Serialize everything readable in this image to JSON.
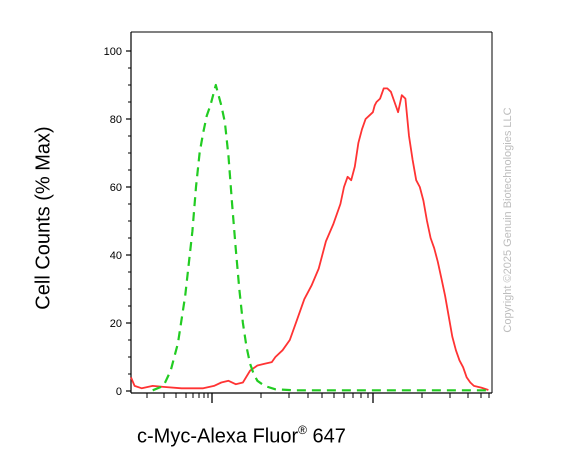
{
  "chart_data": {
    "type": "line",
    "xlabel_parts": {
      "main": "c-Myc-Alexa Fluor",
      "sup": "®",
      "rest": " 647"
    },
    "ylabel": "Cell Counts (% Max)",
    "ylim": [
      0,
      100
    ],
    "y_ticks": [
      "0",
      "20",
      "40",
      "60",
      "80",
      "100"
    ],
    "x_scale": "log",
    "x_ticks_labels": "none",
    "grid": false,
    "legend": "none",
    "series": [
      {
        "color": "#ff3333",
        "style": "solid",
        "points": [
          [
            0.0,
            4
          ],
          [
            0.01,
            1.5
          ],
          [
            0.03,
            0.8
          ],
          [
            0.06,
            1.5
          ],
          [
            0.09,
            1.2
          ],
          [
            0.14,
            0.8
          ],
          [
            0.2,
            0.8
          ],
          [
            0.23,
            1.5
          ],
          [
            0.25,
            2.5
          ],
          [
            0.27,
            3
          ],
          [
            0.29,
            2
          ],
          [
            0.31,
            2.5
          ],
          [
            0.33,
            6
          ],
          [
            0.35,
            7.5
          ],
          [
            0.37,
            8
          ],
          [
            0.39,
            8.5
          ],
          [
            0.4,
            10
          ],
          [
            0.42,
            12
          ],
          [
            0.44,
            15
          ],
          [
            0.46,
            21
          ],
          [
            0.48,
            27
          ],
          [
            0.5,
            31
          ],
          [
            0.52,
            36
          ],
          [
            0.54,
            44
          ],
          [
            0.56,
            49
          ],
          [
            0.58,
            55
          ],
          [
            0.59,
            60
          ],
          [
            0.6,
            63
          ],
          [
            0.61,
            62
          ],
          [
            0.62,
            66
          ],
          [
            0.63,
            73
          ],
          [
            0.64,
            77
          ],
          [
            0.65,
            80
          ],
          [
            0.66,
            81
          ],
          [
            0.67,
            82
          ],
          [
            0.675,
            84
          ],
          [
            0.68,
            85
          ],
          [
            0.69,
            86
          ],
          [
            0.7,
            89
          ],
          [
            0.71,
            89
          ],
          [
            0.72,
            88
          ],
          [
            0.73,
            85
          ],
          [
            0.74,
            82
          ],
          [
            0.75,
            87
          ],
          [
            0.76,
            86
          ],
          [
            0.77,
            75
          ],
          [
            0.78,
            68
          ],
          [
            0.79,
            62
          ],
          [
            0.8,
            60
          ],
          [
            0.81,
            56
          ],
          [
            0.82,
            50
          ],
          [
            0.83,
            45
          ],
          [
            0.84,
            42
          ],
          [
            0.85,
            38
          ],
          [
            0.86,
            33
          ],
          [
            0.87,
            28
          ],
          [
            0.88,
            22
          ],
          [
            0.89,
            16
          ],
          [
            0.9,
            12
          ],
          [
            0.91,
            9
          ],
          [
            0.92,
            7
          ],
          [
            0.93,
            4
          ],
          [
            0.94,
            2.5
          ],
          [
            0.95,
            1.5
          ],
          [
            0.97,
            1
          ],
          [
            0.99,
            0.3
          ]
        ]
      },
      {
        "color": "#22cc22",
        "style": "dashed",
        "points": [
          [
            0.06,
            0.2
          ],
          [
            0.09,
            1.5
          ],
          [
            0.11,
            6
          ],
          [
            0.13,
            14
          ],
          [
            0.15,
            28
          ],
          [
            0.17,
            47
          ],
          [
            0.18,
            60
          ],
          [
            0.19,
            70
          ],
          [
            0.2,
            76
          ],
          [
            0.21,
            81
          ],
          [
            0.22,
            84
          ],
          [
            0.23,
            88
          ],
          [
            0.235,
            90
          ],
          [
            0.24,
            88
          ],
          [
            0.25,
            84
          ],
          [
            0.26,
            79
          ],
          [
            0.27,
            69
          ],
          [
            0.28,
            55
          ],
          [
            0.29,
            42
          ],
          [
            0.3,
            30
          ],
          [
            0.31,
            20
          ],
          [
            0.32,
            13
          ],
          [
            0.33,
            8
          ],
          [
            0.34,
            5
          ],
          [
            0.35,
            3
          ],
          [
            0.37,
            1.5
          ],
          [
            0.4,
            0.5
          ],
          [
            0.45,
            0.2
          ],
          [
            0.99,
            0.2
          ]
        ]
      }
    ]
  },
  "watermark": "Copyright ©2025 Genuin Biotechnologies LLC"
}
